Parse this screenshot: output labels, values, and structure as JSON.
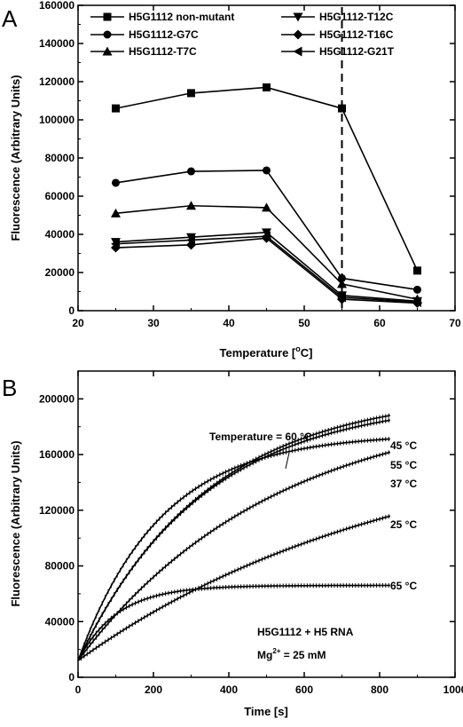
{
  "chart_data": [
    {
      "panel": "A",
      "type": "line",
      "xlabel": "Temperature [",
      "xlabel_sup": "o",
      "xlabel_end": "C]",
      "ylabel": "Fluorescence (Arbitrary Units)",
      "xlim": [
        20,
        70
      ],
      "ylim": [
        0,
        160000
      ],
      "xticks": [
        "20",
        "30",
        "40",
        "50",
        "60",
        "70"
      ],
      "yticks": [
        "0",
        "20000",
        "40000",
        "60000",
        "80000",
        "100000",
        "120000",
        "140000",
        "160000"
      ],
      "x": [
        25,
        35,
        45,
        55,
        65
      ],
      "vline_x": 55,
      "legend_position": "top",
      "series": [
        {
          "name": "H5G1112 non-mutant",
          "marker": "square",
          "values": [
            106000,
            114000,
            117000,
            106000,
            21000
          ]
        },
        {
          "name": "H5G1112-G7C",
          "marker": "circle",
          "values": [
            67000,
            73000,
            73500,
            17000,
            11000
          ]
        },
        {
          "name": "H5G1112-T7C",
          "marker": "triangle-up",
          "values": [
            51000,
            55000,
            54000,
            14000,
            6000
          ]
        },
        {
          "name": "H5G1112-T12C",
          "marker": "triangle-down",
          "values": [
            36000,
            38500,
            41000,
            8000,
            5000
          ]
        },
        {
          "name": "H5G1112-T16C",
          "marker": "diamond",
          "values": [
            33000,
            34500,
            38000,
            6000,
            4000
          ]
        },
        {
          "name": "H5G1112-G21T",
          "marker": "triangle-left",
          "values": [
            35000,
            37000,
            39000,
            7000,
            4500
          ]
        }
      ]
    },
    {
      "panel": "B",
      "type": "line",
      "xlabel": "Time [s]",
      "ylabel": "Fluorescence (Arbitrary Units)",
      "xlim": [
        0,
        1000
      ],
      "ylim": [
        0,
        220000
      ],
      "xticks": [
        "0",
        "200",
        "400",
        "600",
        "800",
        "1000"
      ],
      "yticks": [
        "0",
        "40000",
        "80000",
        "120000",
        "160000",
        "200000"
      ],
      "series": [
        {
          "name": "45 °C",
          "plateau": 205000,
          "tau": 340
        },
        {
          "name": "Temperature = 60 °C",
          "plateau": 200000,
          "tau": 330
        },
        {
          "name": "55 °C",
          "plateau": 175000,
          "tau": 220
        },
        {
          "name": "37 °C",
          "plateau": 200000,
          "tau": 520
        },
        {
          "name": "25 °C",
          "plateau": 180000,
          "tau": 860
        },
        {
          "name": "65 °C",
          "plateau": 66000,
          "tau": 105
        }
      ],
      "annotations": {
        "title_line1": "H5G1112 + H5 RNA",
        "mg_prefix": "Mg",
        "mg_sup": "2+",
        "mg_suffix": " = 25 mM"
      }
    }
  ],
  "panel_labels": {
    "a": "A",
    "b": "B"
  }
}
